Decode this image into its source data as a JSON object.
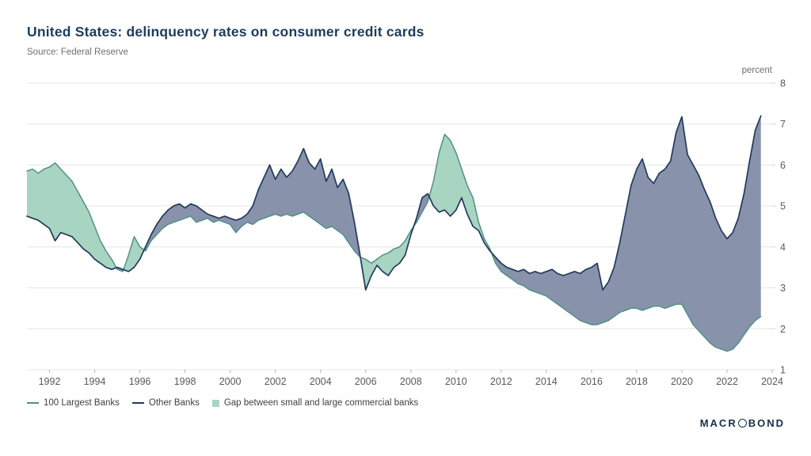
{
  "header": {
    "title": "United States: delinquency rates on consumer credit cards",
    "source": "Source: Federal Reserve"
  },
  "axis": {
    "unit_label": "percent"
  },
  "legend": [
    {
      "label": "100 Largest Banks",
      "type": "line",
      "color": "#4f9184"
    },
    {
      "label": "Other Banks",
      "type": "line",
      "color": "#22395c"
    },
    {
      "label": "Gap between small and large commercial banks",
      "type": "area",
      "color": "#a8d5c2"
    }
  ],
  "branding": {
    "logo_left": "MACR",
    "logo_right": "BOND"
  },
  "colors": {
    "title": "#1d3c5e",
    "gridline": "#e4e4e4",
    "axis_text": "#595959",
    "large_banks_line": "#4f9184",
    "other_banks_line": "#22395c",
    "gap_fill_green": "#a8d5c2",
    "gap_fill_slate": "#8893ab"
  },
  "chart_data": {
    "type": "line",
    "title": "United States: delinquency rates on consumer credit cards",
    "source": "Source: Federal Reserve",
    "ylabel": "percent",
    "xlim": [
      1991,
      2024
    ],
    "ylim": [
      1,
      8
    ],
    "x_ticks": [
      1992,
      1994,
      1996,
      1998,
      2000,
      2002,
      2004,
      2006,
      2008,
      2010,
      2012,
      2014,
      2016,
      2018,
      2020,
      2022,
      2024
    ],
    "y_ticks": [
      1,
      2,
      3,
      4,
      5,
      6,
      7,
      8
    ],
    "x_start": 1991,
    "x_step": 0.25,
    "grid": "horizontal",
    "legend_position": "bottom-left",
    "series": [
      {
        "id": "100-largest-banks",
        "name": "100 Largest Banks",
        "color": "#4f9184",
        "values": [
          5.85,
          5.9,
          5.8,
          5.9,
          5.95,
          6.05,
          5.9,
          5.75,
          5.6,
          5.35,
          5.1,
          4.85,
          4.5,
          4.15,
          3.9,
          3.7,
          3.45,
          3.4,
          3.8,
          4.25,
          4.0,
          3.9,
          4.15,
          4.3,
          4.45,
          4.55,
          4.6,
          4.65,
          4.7,
          4.75,
          4.6,
          4.65,
          4.7,
          4.6,
          4.65,
          4.6,
          4.55,
          4.35,
          4.5,
          4.6,
          4.55,
          4.65,
          4.7,
          4.75,
          4.8,
          4.75,
          4.8,
          4.75,
          4.8,
          4.85,
          4.75,
          4.65,
          4.55,
          4.45,
          4.5,
          4.4,
          4.3,
          4.1,
          3.9,
          3.75,
          3.7,
          3.6,
          3.7,
          3.8,
          3.85,
          3.95,
          4.0,
          4.15,
          4.4,
          4.6,
          4.85,
          5.1,
          5.6,
          6.3,
          6.75,
          6.6,
          6.3,
          5.9,
          5.5,
          5.2,
          4.6,
          4.2,
          3.95,
          3.6,
          3.4,
          3.3,
          3.2,
          3.1,
          3.05,
          2.95,
          2.9,
          2.85,
          2.8,
          2.7,
          2.6,
          2.5,
          2.4,
          2.3,
          2.2,
          2.15,
          2.1,
          2.1,
          2.15,
          2.2,
          2.3,
          2.4,
          2.45,
          2.5,
          2.5,
          2.45,
          2.5,
          2.55,
          2.55,
          2.5,
          2.55,
          2.6,
          2.6,
          2.35,
          2.1,
          1.95,
          1.8,
          1.65,
          1.55,
          1.5,
          1.45,
          1.5,
          1.65,
          1.85,
          2.05,
          2.2,
          2.3
        ]
      },
      {
        "id": "other-banks",
        "name": "Other Banks",
        "color": "#22395c",
        "values": [
          4.75,
          4.7,
          4.65,
          4.55,
          4.45,
          4.15,
          4.35,
          4.3,
          4.25,
          4.1,
          3.95,
          3.85,
          3.7,
          3.6,
          3.5,
          3.45,
          3.5,
          3.45,
          3.4,
          3.5,
          3.7,
          4.0,
          4.3,
          4.55,
          4.75,
          4.9,
          5.0,
          5.05,
          4.95,
          5.05,
          5.0,
          4.9,
          4.8,
          4.75,
          4.7,
          4.75,
          4.7,
          4.65,
          4.7,
          4.8,
          5.0,
          5.4,
          5.7,
          6.0,
          5.65,
          5.9,
          5.7,
          5.85,
          6.1,
          6.4,
          6.05,
          5.9,
          6.15,
          5.6,
          5.9,
          5.45,
          5.65,
          5.3,
          4.6,
          3.8,
          2.95,
          3.3,
          3.55,
          3.4,
          3.3,
          3.5,
          3.6,
          3.8,
          4.3,
          4.7,
          5.2,
          5.3,
          5.0,
          4.85,
          4.9,
          4.75,
          4.9,
          5.2,
          4.8,
          4.5,
          4.4,
          4.1,
          3.9,
          3.75,
          3.6,
          3.5,
          3.45,
          3.4,
          3.45,
          3.35,
          3.4,
          3.35,
          3.4,
          3.45,
          3.35,
          3.3,
          3.35,
          3.4,
          3.35,
          3.45,
          3.5,
          3.6,
          2.95,
          3.15,
          3.5,
          4.1,
          4.8,
          5.5,
          5.9,
          6.15,
          5.7,
          5.55,
          5.8,
          5.9,
          6.1,
          6.8,
          7.18,
          6.25,
          6.0,
          5.75,
          5.4,
          5.1,
          4.7,
          4.4,
          4.2,
          4.35,
          4.7,
          5.3,
          6.1,
          6.85,
          7.2
        ]
      }
    ],
    "gap_fill": {
      "label": "Gap between small and large commercial banks",
      "large_above_color": "#a8d5c2",
      "small_above_color": "#8893ab"
    }
  }
}
